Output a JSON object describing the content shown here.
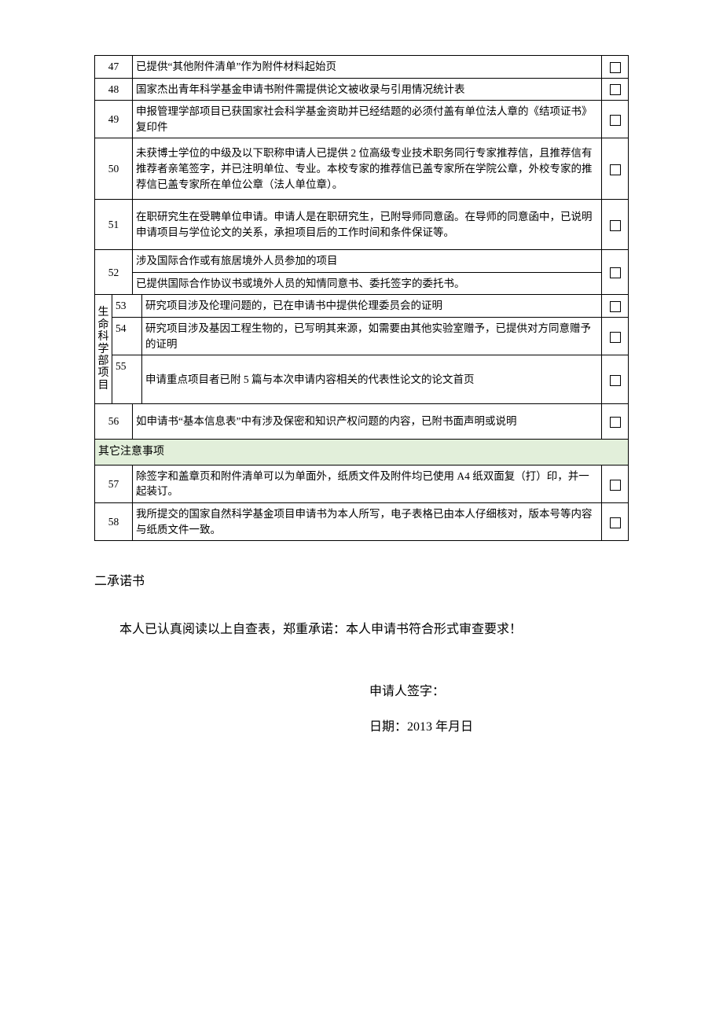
{
  "rows": [
    {
      "n": "47",
      "text": "已提供“其他附件清单”作为附件材料起始页"
    },
    {
      "n": "48",
      "text": "国家杰出青年科学基金申请书附件需提供论文被收录与引用情况统计表"
    },
    {
      "n": "49",
      "text": "申报管理学部项目已获国家社会科学基金资助并已经结题的必须付盖有单位法人章的《结项证书》复印件"
    },
    {
      "n": "50",
      "text": "未获博士学位的中级及以下职称申请人已提供 2 位高级专业技术职务同行专家推荐信，且推荐信有推荐者亲笔签字，并已注明单位、专业。本校专家的推荐信已盖专家所在学院公章，外校专家的推荐信已盖专家所在单位公章（法人单位章）。"
    },
    {
      "n": "51",
      "text": "在职研究生在受聘单位申请。申请人是在职研究生，已附导师同意函。在导师的同意函中，已说明申请项目与学位论文的关系，承担项目后的工作时间和条件保证等。"
    },
    {
      "n": "52",
      "top": "涉及国际合作或有旅居境外人员参加的项目",
      "bot": "已提供国际合作协议书或境外人员的知情同意书、委托签字的委托书。"
    }
  ],
  "life_rows": [
    {
      "n": "53",
      "text": "研究项目涉及伦理问题的，已在申请书中提供伦理委员会的证明"
    },
    {
      "n": "54",
      "text": "研究项目涉及基因工程生物的，已写明其来源，如需要由其他实验室赠予，已提供对方同意赠予的证明"
    },
    {
      "n": "55",
      "text": "申请重点项目者已附 5 篇与本次申请内容相关的代表性论文的论文首页"
    }
  ],
  "life_label": "生命科学部项目",
  "row56": {
    "n": "56",
    "text": "如申请书“基本信息表”中有涉及保密和知识产权问题的内容，已附书面声明或说明"
  },
  "section": "其它注意事项",
  "tail_rows": [
    {
      "n": "57",
      "text": "除签字和盖章页和附件清单可以为单面外，纸质文件及附件均已使用 A4 纸双面复（打）印，并一起装订。"
    },
    {
      "n": "58",
      "text": "我所提交的国家自然科学基金项目申请书为本人所写，电子表格已由本人仔细核对，版本号等内容与纸质文件一致。"
    }
  ],
  "declaration": {
    "title": "二承诺书",
    "body": "本人已认真阅读以上自查表，郑重承诺：本人申请书符合形式审查要求！",
    "sign_label": "申请人签字：",
    "date_label": "日期：2013 年月日"
  }
}
